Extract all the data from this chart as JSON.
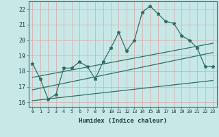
{
  "xlabel": "Humidex (Indice chaleur)",
  "xlim": [
    -0.5,
    23.5
  ],
  "ylim": [
    15.7,
    22.5
  ],
  "xticks": [
    0,
    1,
    2,
    3,
    4,
    5,
    6,
    7,
    8,
    9,
    10,
    11,
    12,
    13,
    14,
    15,
    16,
    17,
    18,
    19,
    20,
    21,
    22,
    23
  ],
  "yticks": [
    16,
    17,
    18,
    19,
    20,
    21,
    22
  ],
  "bg_color": "#c8e8e8",
  "grid_color": "#d8b0b0",
  "line_color": "#2e6e60",
  "main_line_x": [
    0,
    1,
    2,
    3,
    4,
    5,
    6,
    7,
    8,
    9,
    10,
    11,
    12,
    13,
    14,
    15,
    16,
    17,
    18,
    19,
    20,
    21,
    22,
    23
  ],
  "main_line_y": [
    18.5,
    17.5,
    16.2,
    16.5,
    18.2,
    18.2,
    18.6,
    18.3,
    17.5,
    18.6,
    19.5,
    20.5,
    19.3,
    20.0,
    21.8,
    22.2,
    21.7,
    21.2,
    21.1,
    20.3,
    20.0,
    19.5,
    18.3,
    18.3
  ],
  "trend1_x": [
    0,
    23
  ],
  "trend1_y": [
    16.1,
    17.4
  ],
  "trend2_x": [
    0,
    23
  ],
  "trend2_y": [
    16.8,
    19.2
  ],
  "trend3_x": [
    0,
    23
  ],
  "trend3_y": [
    17.6,
    19.8
  ]
}
